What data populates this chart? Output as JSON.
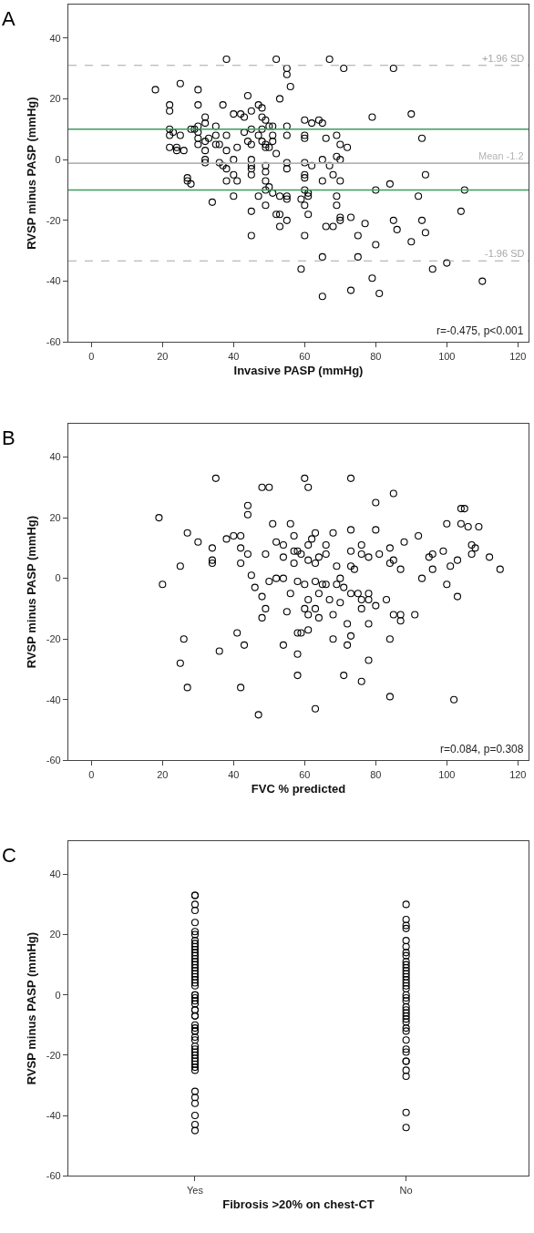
{
  "chart_data": [
    {
      "type": "scatter",
      "title": "A",
      "xlabel": "Invasive PASP (mmHg)",
      "ylabel": "RVSP minus PASP (mmHg)",
      "xlim": [
        -6.5,
        123
      ],
      "ylim": [
        -60,
        51
      ],
      "xticks": [
        0,
        20,
        40,
        60,
        80,
        100,
        120
      ],
      "yticks": [
        -60,
        -40,
        -20,
        0,
        20,
        40
      ],
      "marker": "circle",
      "series": [
        {
          "color": "#000000",
          "x": [
            18,
            25,
            30,
            38,
            52,
            55,
            55,
            56,
            22,
            22,
            30,
            37,
            44,
            53,
            32,
            32,
            40,
            42,
            43,
            45,
            47,
            48,
            48,
            49,
            50,
            51,
            55,
            22,
            22,
            23,
            25,
            28,
            29,
            30,
            30,
            30,
            30,
            32,
            33,
            35,
            35,
            35,
            36,
            38,
            43,
            45,
            44,
            45,
            47,
            48,
            48,
            49,
            49,
            50,
            51,
            51,
            55,
            22,
            24,
            24,
            26,
            32,
            32,
            32,
            38,
            41,
            52,
            36,
            37,
            38,
            40,
            45,
            45,
            45,
            45,
            49,
            49,
            55,
            55,
            40,
            41,
            38,
            27,
            27,
            28,
            49,
            50,
            49,
            51,
            53,
            55,
            55,
            40,
            47,
            34,
            45,
            49,
            52,
            53,
            55,
            53,
            45,
            67,
            71,
            85,
            60,
            62,
            64,
            65,
            79,
            90,
            60,
            60,
            66,
            69,
            70,
            72,
            93,
            60,
            62,
            65,
            67,
            69,
            70,
            60,
            60,
            65,
            68,
            70,
            84,
            94,
            60,
            61,
            61,
            59,
            60,
            61,
            69,
            69,
            70,
            70,
            73,
            80,
            92,
            105,
            104,
            66,
            68,
            77,
            60,
            85,
            86,
            93,
            94,
            75,
            80,
            90,
            65,
            75,
            59,
            96,
            100,
            79,
            73,
            81,
            65,
            110
          ],
          "values": [
            23,
            25,
            23,
            33,
            33,
            30,
            28,
            24,
            18,
            16,
            18,
            18,
            21,
            20,
            14,
            12,
            15,
            15,
            14,
            16,
            18,
            17,
            14,
            13,
            11,
            11,
            11,
            10,
            8,
            9,
            8,
            10,
            10,
            11,
            9,
            7,
            5,
            6,
            7,
            11,
            8,
            5,
            5,
            8,
            9,
            10,
            6,
            5,
            8,
            10,
            6,
            4,
            5,
            4,
            8,
            6,
            8,
            4,
            4,
            3,
            3,
            3,
            0,
            -1,
            3,
            4,
            2,
            -1,
            -2,
            -3,
            0,
            0,
            -2,
            -3,
            -5,
            -2,
            -4,
            -1,
            -3,
            -5,
            -7,
            -7,
            -6,
            -7,
            -8,
            -7,
            -9,
            -10,
            -11,
            -12,
            -12,
            -13,
            -12,
            -12,
            -14,
            -17,
            -15,
            -18,
            -18,
            -20,
            -22,
            -25,
            33,
            30,
            30,
            13,
            12,
            13,
            12,
            14,
            15,
            8,
            7,
            7,
            8,
            5,
            4,
            7,
            -1,
            -2,
            0,
            -2,
            1,
            0,
            -5,
            -6,
            -7,
            -5,
            -7,
            -8,
            -5,
            -10,
            -11,
            -12,
            -13,
            -15,
            -18,
            -12,
            -15,
            -19,
            -20,
            -19,
            -10,
            -12,
            -10,
            -17,
            -22,
            -22,
            -21,
            -25,
            -20,
            -23,
            -20,
            -24,
            -25,
            -28,
            -27,
            -32,
            -32,
            -36,
            -36,
            -34,
            -39,
            -43,
            -44,
            -45,
            -40
          ]
        }
      ],
      "ref_lines": [
        {
          "axis": "y",
          "value": 31,
          "label": "+1.96 SD",
          "color": "#a6a6a6",
          "line_style": "dashed"
        },
        {
          "axis": "y",
          "value": -1.2,
          "label": "Mean -1.2",
          "color": "#b4b4b4",
          "line_style": "solid"
        },
        {
          "axis": "y",
          "value": -33.3,
          "label": "-1.96 SD",
          "color": "#a6a6a6",
          "line_style": "dashed"
        },
        {
          "axis": "y",
          "value": 10,
          "color": "#3f9a5f",
          "line_style": "solid"
        },
        {
          "axis": "y",
          "value": -10,
          "color": "#3f9a5f",
          "line_style": "solid"
        }
      ],
      "annotations": [
        "r=-0.475, p<0.001"
      ]
    },
    {
      "type": "scatter",
      "title": "B",
      "xlabel": "FVC % predicted",
      "ylabel": "RVSP minus PASP (mmHg)",
      "xlim": [
        -6.5,
        123
      ],
      "ylim": [
        -60,
        51
      ],
      "xticks": [
        0,
        20,
        40,
        60,
        80,
        100,
        120
      ],
      "yticks": [
        -60,
        -40,
        -20,
        0,
        20,
        40
      ],
      "marker": "circle",
      "series": [
        {
          "color": "#000000",
          "x": [
            19,
            20,
            27,
            30,
            25,
            35,
            34,
            34,
            34,
            38,
            40,
            42,
            42,
            42,
            44,
            44,
            44,
            45,
            46,
            48,
            50,
            51,
            49,
            52,
            54,
            54,
            56,
            57,
            57,
            57,
            58,
            48,
            49,
            48,
            50,
            52,
            54,
            56,
            58,
            55,
            41,
            43,
            54,
            58,
            26,
            36,
            25,
            27,
            42,
            47,
            58,
            58,
            60,
            61,
            73,
            85,
            80,
            104,
            105,
            100,
            104,
            106,
            109,
            63,
            68,
            73,
            80,
            92,
            88,
            62,
            61,
            66,
            76,
            84,
            66,
            73,
            76,
            78,
            81,
            59,
            99,
            95,
            96,
            107,
            108,
            107,
            112,
            115,
            103,
            101,
            96,
            61,
            63,
            64,
            69,
            73,
            74,
            84,
            85,
            87,
            93,
            100,
            103,
            60,
            63,
            65,
            66,
            69,
            70,
            71,
            73,
            75,
            78,
            64,
            61,
            67,
            70,
            76,
            78,
            80,
            83,
            60,
            63,
            61,
            64,
            68,
            76,
            85,
            87,
            87,
            91,
            72,
            78,
            59,
            61,
            73,
            72,
            68,
            84,
            78,
            71,
            76,
            84,
            102,
            63
          ],
          "values": [
            20,
            -2,
            15,
            12,
            4,
            33,
            10,
            6,
            5,
            13,
            14,
            14,
            10,
            5,
            24,
            21,
            8,
            1,
            -3,
            30,
            30,
            18,
            8,
            12,
            11,
            7,
            18,
            14,
            5,
            9,
            9,
            -6,
            -10,
            -13,
            -1,
            0,
            0,
            -5,
            -1,
            -11,
            -18,
            -22,
            -22,
            -18,
            -20,
            -24,
            -28,
            -36,
            -36,
            -45,
            -25,
            -32,
            33,
            30,
            33,
            28,
            25,
            23,
            23,
            18,
            18,
            17,
            17,
            15,
            15,
            16,
            16,
            14,
            12,
            13,
            11,
            11,
            11,
            10,
            8,
            9,
            8,
            7,
            8,
            8,
            9,
            7,
            8,
            11,
            10,
            8,
            7,
            3,
            6,
            4,
            3,
            6,
            5,
            7,
            4,
            4,
            3,
            5,
            6,
            3,
            0,
            -2,
            -6,
            -2,
            -1,
            -2,
            -2,
            -2,
            0,
            -3,
            -5,
            -5,
            -5,
            -5,
            -7,
            -7,
            -8,
            -7,
            -7,
            -9,
            -7,
            -10,
            -10,
            -12,
            -13,
            -12,
            -10,
            -12,
            -12,
            -14,
            -12,
            -15,
            -15,
            -18,
            -17,
            -19,
            -22,
            -20,
            -20,
            -27,
            -32,
            -34,
            -39,
            -40,
            -43
          ]
        }
      ],
      "annotations": [
        "r=0.084, p=0.308"
      ]
    },
    {
      "type": "scatter",
      "title": "C",
      "xlabel": "Fibrosis >20% on chest-CT",
      "ylabel": "RVSP minus PASP (mmHg)",
      "categories": [
        "Yes",
        "No"
      ],
      "ylim": [
        -60,
        51
      ],
      "yticks": [
        -60,
        -40,
        -20,
        0,
        20,
        40
      ],
      "marker": "circle",
      "series": [
        {
          "color": "#000000",
          "x": [
            "Yes",
            "Yes",
            "Yes",
            "Yes",
            "Yes",
            "Yes",
            "Yes",
            "Yes",
            "Yes",
            "Yes",
            "Yes",
            "Yes",
            "Yes",
            "Yes",
            "Yes",
            "Yes",
            "Yes",
            "Yes",
            "Yes",
            "Yes",
            "Yes",
            "Yes",
            "Yes",
            "Yes",
            "Yes",
            "Yes",
            "Yes",
            "Yes",
            "Yes",
            "Yes",
            "Yes",
            "Yes",
            "Yes",
            "Yes",
            "Yes",
            "Yes",
            "Yes",
            "Yes",
            "Yes",
            "Yes",
            "Yes",
            "Yes",
            "Yes",
            "Yes",
            "Yes",
            "Yes",
            "Yes",
            "Yes",
            "Yes",
            "Yes",
            "Yes",
            "Yes",
            "Yes"
          ],
          "values": [
            33,
            33,
            30,
            28,
            24,
            21,
            20,
            18,
            17,
            16,
            15,
            14,
            13,
            12,
            11,
            10,
            9,
            8,
            7,
            6,
            5,
            4,
            3,
            0,
            0,
            -1,
            -2,
            -3,
            -5,
            -5,
            -7,
            -7,
            -10,
            -11,
            -12,
            -12,
            -14,
            -15,
            -17,
            -18,
            -19,
            -20,
            -21,
            -22,
            -23,
            -24,
            -25,
            -32,
            -34,
            -36,
            -40,
            -43,
            -45
          ]
        },
        {
          "color": "#000000",
          "x": [
            "No",
            "No",
            "No",
            "No",
            "No",
            "No",
            "No",
            "No",
            "No",
            "No",
            "No",
            "No",
            "No",
            "No",
            "No",
            "No",
            "No",
            "No",
            "No",
            "No",
            "No",
            "No",
            "No",
            "No",
            "No",
            "No",
            "No",
            "No",
            "No",
            "No",
            "No",
            "No",
            "No",
            "No",
            "No",
            "No",
            "No",
            "No"
          ],
          "values": [
            30,
            25,
            23,
            22,
            18,
            16,
            14,
            13,
            11,
            10,
            9,
            8,
            7,
            6,
            5,
            4,
            3,
            2,
            0,
            -1,
            -2,
            -4,
            -5,
            -6,
            -7,
            -8,
            -9,
            -11,
            -12,
            -15,
            -18,
            -19,
            -22,
            -22,
            -25,
            -27,
            -39,
            -44
          ]
        }
      ]
    }
  ]
}
